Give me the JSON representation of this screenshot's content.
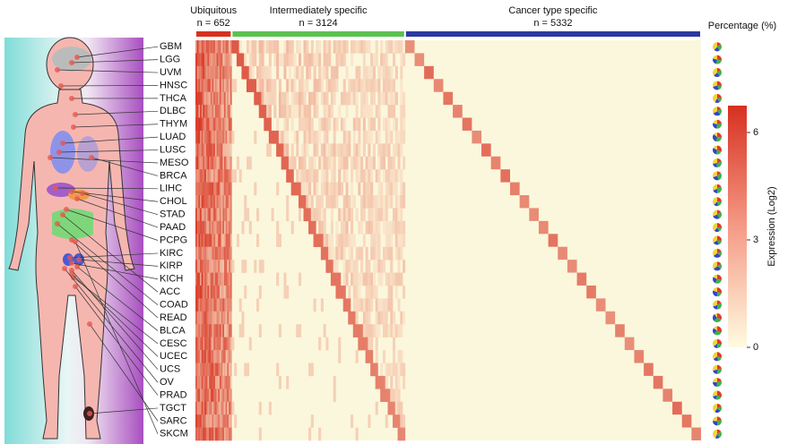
{
  "chart_data": {
    "type": "heatmap",
    "groups": [
      {
        "name": "Ubiquitous",
        "n": {
          "value": 652,
          "label": "n = 652"
        },
        "color": "#d7301f"
      },
      {
        "name": "Intermediately specific",
        "n": {
          "value": 3124,
          "label": "n = 3124"
        },
        "color": "#5cc151"
      },
      {
        "name": "Cancer type specific",
        "n": {
          "value": 5332,
          "label": "n = 5332"
        },
        "color": "#2b3a9e"
      }
    ],
    "categories": [
      "GBM",
      "LGG",
      "UVM",
      "HNSC",
      "THCA",
      "DLBC",
      "THYM",
      "LUAD",
      "LUSC",
      "MESO",
      "BRCA",
      "LIHC",
      "CHOL",
      "STAD",
      "PAAD",
      "PCPG",
      "KIRC",
      "KIRP",
      "KICH",
      "ACC",
      "COAD",
      "READ",
      "BLCA",
      "CESC",
      "UCEC",
      "UCS",
      "OV",
      "PRAD",
      "TGCT",
      "SARC",
      "SKCM"
    ],
    "legend_title": "Percentage (%)",
    "colorbar": {
      "label": "Expression (Log2)",
      "ylim": [
        0,
        6.75
      ],
      "yticks": [
        0,
        3,
        6
      ]
    }
  }
}
